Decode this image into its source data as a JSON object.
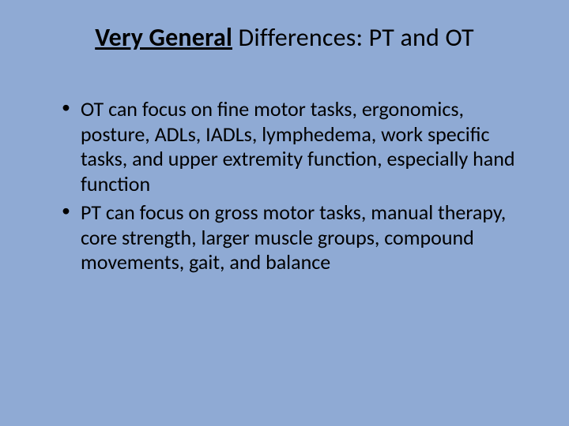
{
  "slide": {
    "background_color": "#8faad4",
    "text_color": "#000000",
    "title": {
      "bold_underlined": "Very General",
      "rest": " Differences: PT and OT",
      "fontsize": 32
    },
    "bullets": [
      "OT can focus on fine motor tasks, ergonomics, posture, ADLs, IADLs, lymphedema, work specific tasks, and upper extremity function, especially hand function",
      "PT can focus on gross motor tasks, manual therapy, core strength, larger muscle groups, compound movements, gait, and balance"
    ],
    "bullet_fontsize": 26,
    "font_family": "Calibri"
  }
}
